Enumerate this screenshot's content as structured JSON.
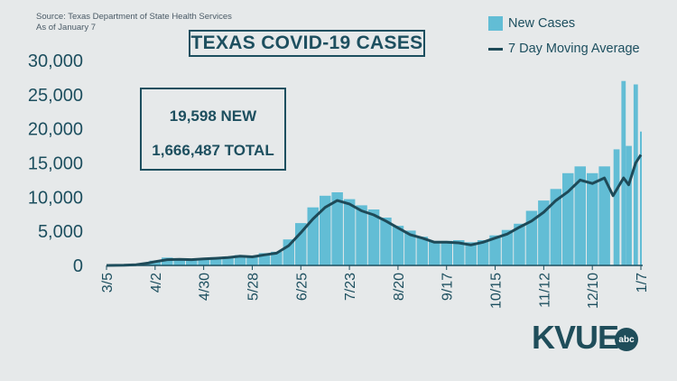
{
  "source": {
    "line1": "Source: Texas Department of State Health Services",
    "line2": "As of January 7"
  },
  "stats": {
    "new": "19,598 NEW",
    "total": "1,666,487 TOTAL"
  },
  "logo": {
    "text": "KVUE",
    "network": "abc"
  },
  "colors": {
    "bars": "#62bdd5",
    "line": "#1e4a58",
    "text": "#1d4f5f",
    "background": "#e6e9ea"
  },
  "chart_data": {
    "type": "bar",
    "title": "TEXAS COVID-19 CASES",
    "ylim": [
      0,
      30000
    ],
    "yticks": [
      0,
      5000,
      10000,
      15000,
      20000,
      25000,
      30000
    ],
    "ytick_labels": [
      "0",
      "5,000",
      "10,000",
      "15,000",
      "20,000",
      "25,000",
      "30,000"
    ],
    "xtick_labels": [
      "3/5",
      "4/2",
      "4/30",
      "5/28",
      "6/25",
      "7/23",
      "8/20",
      "9/17",
      "10/15",
      "11/12",
      "12/10",
      "1/7"
    ],
    "x_start": "2020-03-05",
    "x_end": "2021-01-07",
    "grid": false,
    "legend_position": "top-right",
    "series": [
      {
        "name": "New Cases",
        "type": "bar",
        "points": [
          [
            "2020-03-05",
            0
          ],
          [
            "2020-03-15",
            20
          ],
          [
            "2020-03-22",
            150
          ],
          [
            "2020-03-29",
            450
          ],
          [
            "2020-04-02",
            700
          ],
          [
            "2020-04-09",
            1150
          ],
          [
            "2020-04-16",
            950
          ],
          [
            "2020-04-23",
            900
          ],
          [
            "2020-04-30",
            1050
          ],
          [
            "2020-05-07",
            1200
          ],
          [
            "2020-05-14",
            1300
          ],
          [
            "2020-05-21",
            1500
          ],
          [
            "2020-05-28",
            1350
          ],
          [
            "2020-06-04",
            1800
          ],
          [
            "2020-06-11",
            2000
          ],
          [
            "2020-06-18",
            3800
          ],
          [
            "2020-06-25",
            6200
          ],
          [
            "2020-07-02",
            8500
          ],
          [
            "2020-07-09",
            10200
          ],
          [
            "2020-07-16",
            10700
          ],
          [
            "2020-07-23",
            9700
          ],
          [
            "2020-07-30",
            8800
          ],
          [
            "2020-08-06",
            8200
          ],
          [
            "2020-08-13",
            7000
          ],
          [
            "2020-08-20",
            5800
          ],
          [
            "2020-08-27",
            5100
          ],
          [
            "2020-09-03",
            4200
          ],
          [
            "2020-09-10",
            3600
          ],
          [
            "2020-09-17",
            3600
          ],
          [
            "2020-09-24",
            3700
          ],
          [
            "2020-10-01",
            3400
          ],
          [
            "2020-10-08",
            3700
          ],
          [
            "2020-10-15",
            4400
          ],
          [
            "2020-10-22",
            5200
          ],
          [
            "2020-10-29",
            6100
          ],
          [
            "2020-11-05",
            8000
          ],
          [
            "2020-11-12",
            9500
          ],
          [
            "2020-11-19",
            11200
          ],
          [
            "2020-11-26",
            13500
          ],
          [
            "2020-12-03",
            14500
          ],
          [
            "2020-12-10",
            13500
          ],
          [
            "2020-12-17",
            14500
          ],
          [
            "2020-12-24",
            17000
          ],
          [
            "2020-12-28",
            27000
          ],
          [
            "2020-12-31",
            17500
          ],
          [
            "2021-01-04",
            26500
          ],
          [
            "2021-01-07",
            19598
          ]
        ]
      },
      {
        "name": "7 Day Moving Average",
        "type": "line",
        "points": [
          [
            "2020-03-05",
            0
          ],
          [
            "2020-03-15",
            20
          ],
          [
            "2020-03-22",
            100
          ],
          [
            "2020-03-29",
            350
          ],
          [
            "2020-04-02",
            550
          ],
          [
            "2020-04-09",
            850
          ],
          [
            "2020-04-16",
            900
          ],
          [
            "2020-04-23",
            850
          ],
          [
            "2020-04-30",
            950
          ],
          [
            "2020-05-07",
            1050
          ],
          [
            "2020-05-14",
            1150
          ],
          [
            "2020-05-21",
            1350
          ],
          [
            "2020-05-28",
            1250
          ],
          [
            "2020-06-04",
            1550
          ],
          [
            "2020-06-11",
            1800
          ],
          [
            "2020-06-18",
            2900
          ],
          [
            "2020-06-25",
            4800
          ],
          [
            "2020-07-02",
            6800
          ],
          [
            "2020-07-09",
            8500
          ],
          [
            "2020-07-16",
            9500
          ],
          [
            "2020-07-23",
            9000
          ],
          [
            "2020-07-30",
            8000
          ],
          [
            "2020-08-06",
            7400
          ],
          [
            "2020-08-13",
            6500
          ],
          [
            "2020-08-20",
            5500
          ],
          [
            "2020-08-27",
            4500
          ],
          [
            "2020-09-03",
            4000
          ],
          [
            "2020-09-10",
            3400
          ],
          [
            "2020-09-17",
            3400
          ],
          [
            "2020-09-24",
            3300
          ],
          [
            "2020-10-01",
            3000
          ],
          [
            "2020-10-08",
            3400
          ],
          [
            "2020-10-15",
            4000
          ],
          [
            "2020-10-22",
            4600
          ],
          [
            "2020-10-29",
            5600
          ],
          [
            "2020-11-05",
            6500
          ],
          [
            "2020-11-12",
            7800
          ],
          [
            "2020-11-19",
            9500
          ],
          [
            "2020-11-26",
            10800
          ],
          [
            "2020-12-03",
            12500
          ],
          [
            "2020-12-10",
            12000
          ],
          [
            "2020-12-17",
            12800
          ],
          [
            "2020-12-22",
            10200
          ],
          [
            "2020-12-28",
            12800
          ],
          [
            "2020-12-31",
            11800
          ],
          [
            "2021-01-04",
            15000
          ],
          [
            "2021-01-07",
            16200
          ]
        ]
      }
    ]
  }
}
